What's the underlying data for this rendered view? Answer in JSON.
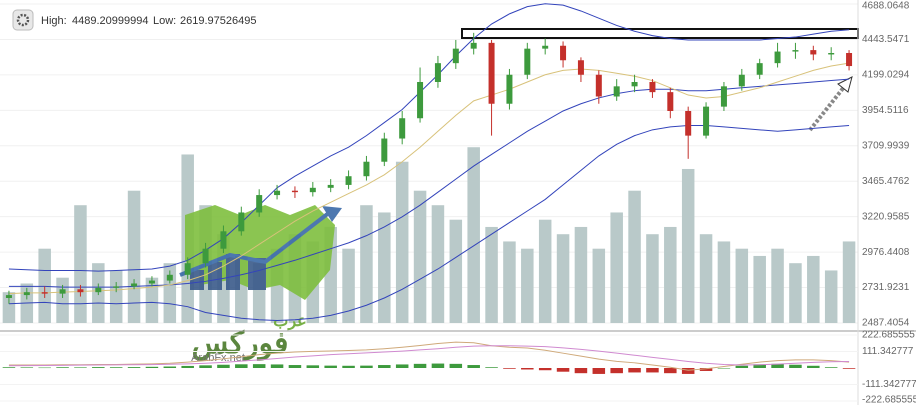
{
  "chart_data": [
    {
      "type": "candlestick",
      "high_label": "High:",
      "high": 4489.20999994,
      "low_label": "Low:",
      "low": 2619.97526495,
      "ylim": [
        2487.4054,
        4688.0648
      ],
      "yticks": [
        2487.4054,
        2731.9231,
        2976.4408,
        3220.9585,
        3465.4762,
        3709.9939,
        3954.5116,
        4199.0294,
        4443.5471,
        4688.0648
      ],
      "grid": true,
      "up_color": "#3d9a3d",
      "down_color": "#c4302b",
      "volume_color": "#b9c9c9",
      "open": [
        2660,
        2680,
        2700,
        2690,
        2720,
        2700,
        2730,
        2740,
        2760,
        2780,
        2820,
        2900,
        3000,
        3120,
        3250,
        3370,
        3400,
        3390,
        3420,
        3440,
        3500,
        3600,
        3760,
        3900,
        4150,
        4280,
        4380,
        4420,
        4000,
        4200,
        4380,
        4400,
        4300,
        4200,
        4050,
        4120,
        4150,
        4080,
        3950,
        3780,
        3980,
        4120,
        4200,
        4280,
        4360,
        4370,
        4340,
        4350
      ],
      "high_values": [
        2710,
        2730,
        2740,
        2750,
        2750,
        2760,
        2770,
        2790,
        2810,
        2850,
        2940,
        3040,
        3160,
        3290,
        3410,
        3440,
        3430,
        3460,
        3480,
        3540,
        3640,
        3800,
        3950,
        4250,
        4330,
        4440,
        4489.20999994,
        4440,
        4240,
        4420,
        4450,
        4430,
        4320,
        4230,
        4170,
        4200,
        4170,
        4110,
        3980,
        4010,
        4150,
        4240,
        4310,
        4420,
        4420,
        4400,
        4390,
        4370
      ],
      "low_values": [
        2619.97526495,
        2650,
        2660,
        2660,
        2670,
        2680,
        2700,
        2720,
        2740,
        2760,
        2790,
        2870,
        2970,
        3090,
        3220,
        3340,
        3350,
        3360,
        3390,
        3410,
        3470,
        3570,
        3720,
        3870,
        4110,
        4240,
        4340,
        3780,
        3960,
        4170,
        4340,
        4250,
        4150,
        4000,
        4020,
        4080,
        4040,
        3900,
        3620,
        3760,
        3950,
        4090,
        4170,
        4250,
        4310,
        4300,
        4300,
        4230
      ],
      "close": [
        2680,
        2700,
        2690,
        2720,
        2700,
        2730,
        2740,
        2760,
        2780,
        2820,
        2900,
        3000,
        3120,
        3250,
        3370,
        3400,
        3390,
        3420,
        3440,
        3500,
        3600,
        3760,
        3900,
        4150,
        4280,
        4380,
        4420,
        4000,
        4200,
        4380,
        4400,
        4300,
        4200,
        4050,
        4120,
        4150,
        4080,
        3950,
        3780,
        3980,
        4120,
        4200,
        4280,
        4360,
        4370,
        4340,
        4350,
        4260
      ],
      "volume": [
        2700,
        2760,
        3000,
        2800,
        3300,
        2900,
        2850,
        3400,
        2800,
        2900,
        3650,
        3300,
        3100,
        2950,
        2900,
        3000,
        3100,
        3050,
        3150,
        3000,
        3300,
        3250,
        3600,
        3400,
        3300,
        3200,
        3700,
        3150,
        3050,
        3000,
        3200,
        3100,
        3150,
        3000,
        3250,
        3400,
        3100,
        3150,
        3550,
        3100,
        3050,
        3000,
        2950,
        3000,
        2900,
        2950,
        2850,
        3050
      ],
      "overlays": [
        {
          "color": "#3344bb",
          "values": [
            2860,
            2855,
            2850,
            2850,
            2850,
            2845,
            2850,
            2855,
            2860,
            2880,
            2920,
            2990,
            3070,
            3180,
            3300,
            3420,
            3500,
            3570,
            3640,
            3700,
            3780,
            3870,
            3960,
            4080,
            4200,
            4330,
            4450,
            4550,
            4620,
            4670,
            4690,
            4680,
            4640,
            4590,
            4540,
            4500,
            4470,
            4450,
            4440,
            4440,
            4440,
            4440,
            4440,
            4450,
            4460,
            4480,
            4500,
            4510
          ]
        },
        {
          "color": "#3344bb",
          "values": [
            2740,
            2740,
            2740,
            2735,
            2735,
            2735,
            2735,
            2740,
            2745,
            2750,
            2760,
            2775,
            2795,
            2820,
            2850,
            2885,
            2920,
            2960,
            3000,
            3040,
            3090,
            3150,
            3220,
            3300,
            3390,
            3480,
            3570,
            3650,
            3730,
            3810,
            3880,
            3950,
            4000,
            4040,
            4070,
            4090,
            4100,
            4100,
            4090,
            4090,
            4100,
            4110,
            4120,
            4130,
            4140,
            4150,
            4160,
            4170
          ]
        },
        {
          "color": "#3344bb",
          "values": [
            2620,
            2625,
            2630,
            2620,
            2620,
            2625,
            2620,
            2625,
            2630,
            2620,
            2600,
            2560,
            2540,
            2520,
            2510,
            2505,
            2510,
            2520,
            2540,
            2570,
            2610,
            2660,
            2720,
            2790,
            2860,
            2940,
            3020,
            3100,
            3180,
            3260,
            3340,
            3440,
            3540,
            3640,
            3720,
            3780,
            3820,
            3840,
            3850,
            3850,
            3840,
            3830,
            3820,
            3810,
            3820,
            3830,
            3840,
            3850
          ]
        },
        {
          "color": "#d8c27a",
          "values": [
            2690,
            2695,
            2695,
            2700,
            2705,
            2710,
            2715,
            2725,
            2735,
            2750,
            2780,
            2820,
            2880,
            2950,
            3030,
            3110,
            3190,
            3260,
            3320,
            3380,
            3440,
            3510,
            3600,
            3700,
            3810,
            3920,
            4020,
            4060,
            4100,
            4150,
            4200,
            4230,
            4240,
            4230,
            4210,
            4190,
            4160,
            4110,
            4060,
            4040,
            4050,
            4080,
            4110,
            4150,
            4190,
            4230,
            4260,
            4280
          ]
        }
      ],
      "watermark": {
        "arabic_top": "عرب",
        "arabic_main": "فوركس",
        "url": "ArabFx.net"
      }
    },
    {
      "type": "macd",
      "ylim": [
        -222.685555,
        222.685555
      ],
      "yticks": [
        -222.685555,
        -111.342777,
        111.342777,
        222.685555
      ],
      "up_color": "#3d9a3d",
      "down_color": "#c4302b",
      "histogram": [
        5,
        4,
        3,
        5,
        4,
        6,
        5,
        6,
        8,
        10,
        14,
        18,
        22,
        25,
        26,
        24,
        20,
        18,
        16,
        15,
        16,
        20,
        24,
        28,
        30,
        28,
        20,
        5,
        -5,
        -10,
        -15,
        -25,
        -35,
        -40,
        -35,
        -30,
        -30,
        -35,
        -40,
        -20,
        0,
        15,
        25,
        28,
        22,
        15,
        5,
        -5
      ],
      "lines": [
        {
          "color": "#cfa97a",
          "values": [
            20,
            20,
            20,
            22,
            22,
            24,
            24,
            26,
            28,
            32,
            40,
            50,
            62,
            76,
            90,
            100,
            108,
            112,
            115,
            118,
            122,
            130,
            140,
            152,
            165,
            175,
            170,
            150,
            140,
            135,
            120,
            100,
            80,
            60,
            45,
            35,
            20,
            5,
            -15,
            -5,
            10,
            25,
            40,
            50,
            55,
            55,
            50,
            40
          ]
        },
        {
          "color": "#d08ad0",
          "values": [
            15,
            16,
            17,
            18,
            19,
            20,
            21,
            22,
            23,
            25,
            28,
            32,
            38,
            46,
            55,
            64,
            74,
            82,
            90,
            96,
            102,
            108,
            114,
            122,
            130,
            140,
            148,
            150,
            150,
            148,
            144,
            136,
            126,
            114,
            100,
            86,
            72,
            58,
            44,
            32,
            24,
            20,
            22,
            26,
            32,
            38,
            42,
            44
          ]
        }
      ]
    }
  ]
}
